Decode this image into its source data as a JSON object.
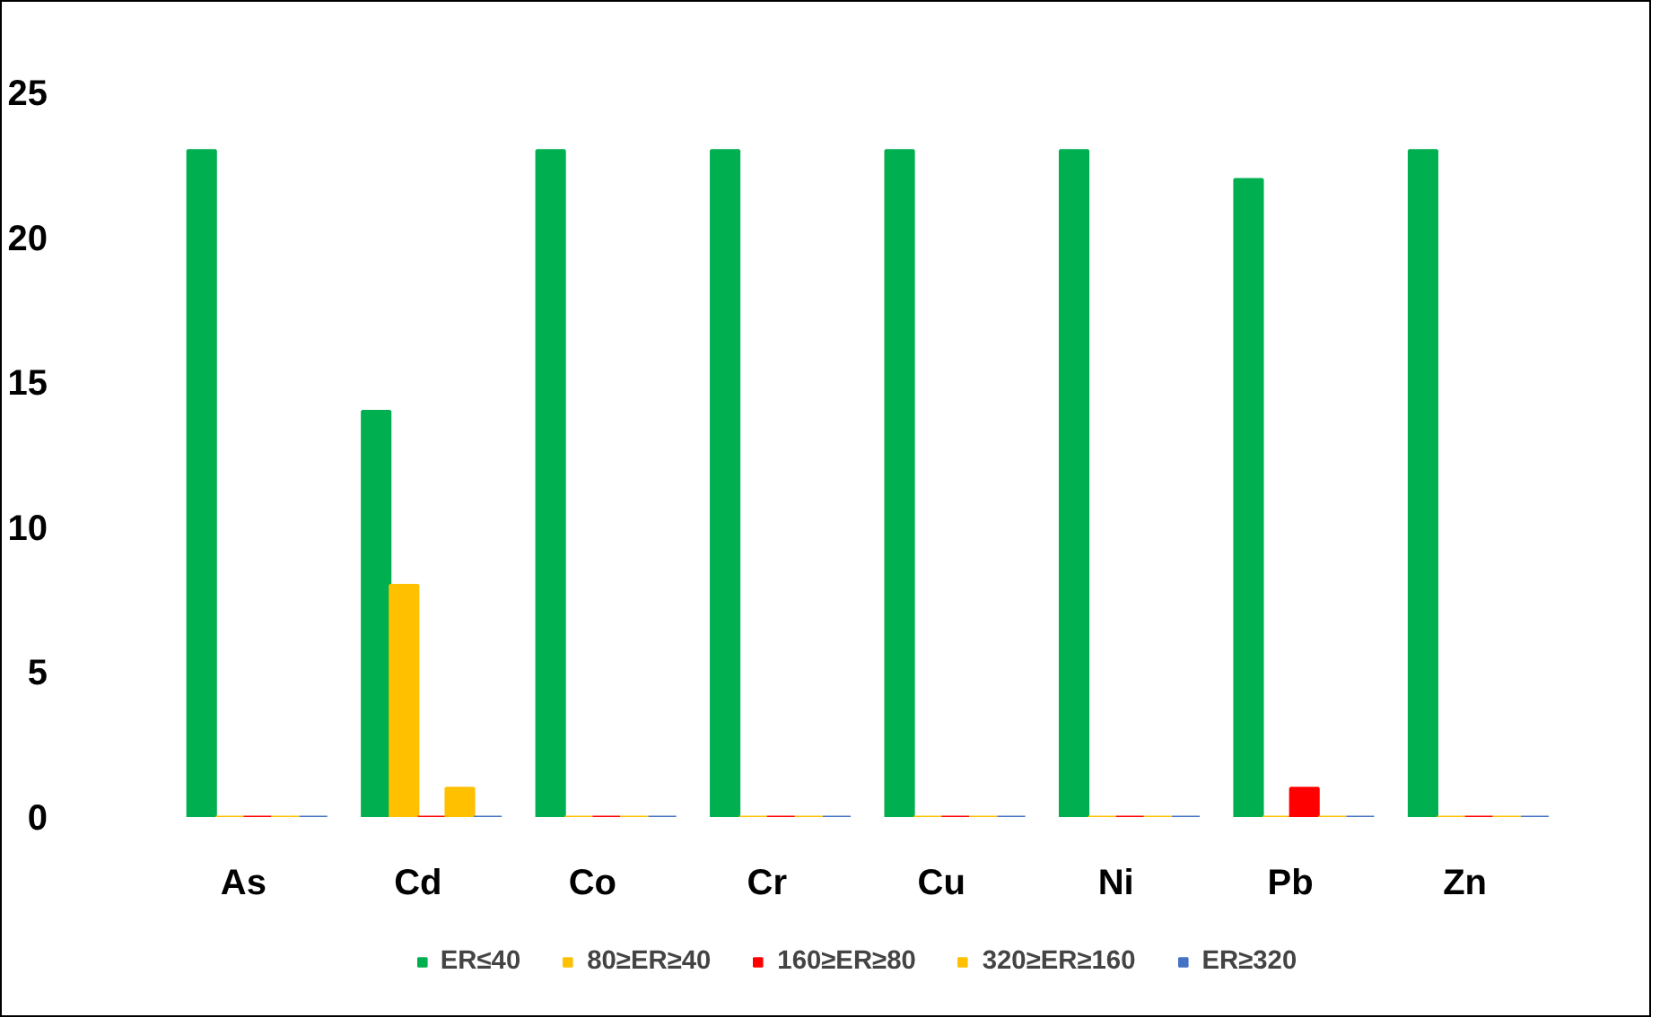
{
  "chart_data": {
    "type": "bar",
    "categories": [
      "As",
      "Cd",
      "Co",
      "Cr",
      "Cu",
      "Ni",
      "Pb",
      "Zn"
    ],
    "series": [
      {
        "name": "ER≤40",
        "color": "#00b050",
        "values": [
          23,
          14,
          23,
          23,
          23,
          23,
          22,
          23
        ]
      },
      {
        "name": "80≥ER≥40",
        "color": "#ffc000",
        "values": [
          0,
          8,
          0,
          0,
          0,
          0,
          0,
          0
        ]
      },
      {
        "name": "160≥ER≥80",
        "color": "#ff0000",
        "values": [
          0,
          0,
          0,
          0,
          0,
          0,
          1,
          0
        ]
      },
      {
        "name": "320≥ER≥160",
        "color": "#ffc000",
        "values": [
          0,
          1,
          0,
          0,
          0,
          0,
          0,
          0
        ]
      },
      {
        "name": "ER≥320",
        "color": "#4472c4",
        "values": [
          0,
          0,
          0,
          0,
          0,
          0,
          0,
          0
        ]
      }
    ],
    "ylim": [
      0,
      25
    ],
    "yticks": [
      0,
      5,
      10,
      15,
      20,
      25
    ],
    "grid": false,
    "legend": "bottom"
  }
}
